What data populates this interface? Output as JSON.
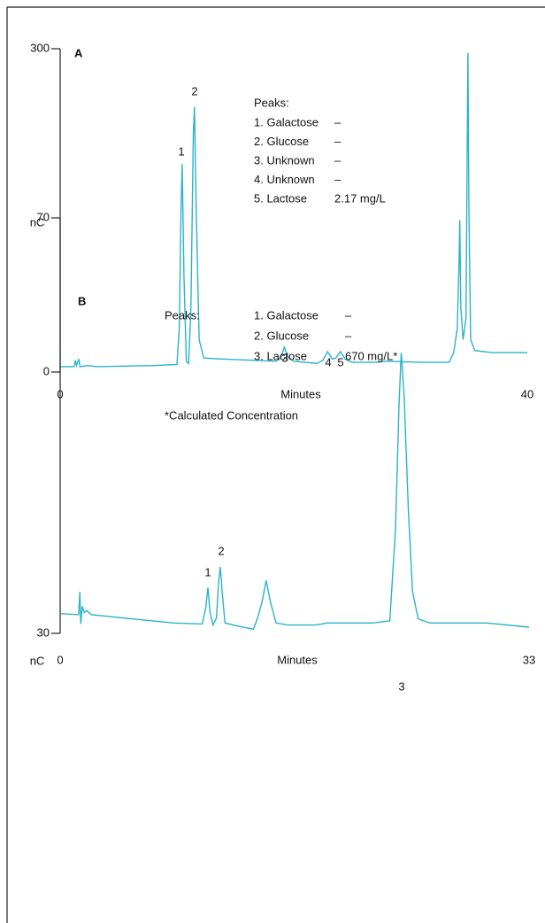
{
  "chart_data": [
    {
      "type": "line",
      "panel": "A",
      "ylabel": "nC",
      "xlabel": "Minutes",
      "color": "#2bb3c8",
      "xlim": [
        0,
        40
      ],
      "ylim": [
        0,
        300
      ],
      "xticks": [
        0,
        40
      ],
      "yticks": [
        0,
        300
      ],
      "x": [
        0,
        1.2,
        1.3,
        1.4,
        1.6,
        1.7,
        2.3,
        3.2,
        8,
        10.0,
        10.2,
        10.35,
        10.45,
        10.6,
        10.8,
        11.0,
        11.2,
        11.4,
        11.5,
        11.65,
        11.9,
        12.3,
        14,
        18.5,
        18.9,
        19.2,
        19.5,
        20,
        22,
        22.5,
        22.9,
        23.3,
        23.6,
        24.0,
        24.4,
        25,
        27,
        28,
        31,
        33.3,
        33.7,
        34.0,
        34.15,
        34.22,
        34.3,
        34.5,
        34.75,
        34.85,
        34.92,
        35.0,
        35.15,
        35.5,
        37,
        40
      ],
      "values": [
        5,
        5,
        11,
        6,
        12,
        5,
        6,
        5,
        6,
        7,
        40,
        150,
        193,
        90,
        10,
        8,
        60,
        220,
        246,
        150,
        30,
        13,
        12,
        10,
        14,
        23,
        14,
        10,
        8,
        11,
        19,
        12,
        13,
        19,
        12,
        9,
        9,
        10,
        9,
        9,
        18,
        40,
        100,
        141,
        60,
        30,
        50,
        200,
        296,
        150,
        30,
        20,
        18,
        18
      ],
      "peak_labels": [
        "1",
        "2",
        "3",
        "4",
        "5"
      ],
      "peaks_title": "Peaks:",
      "peak_table": [
        [
          "1.  Galactose",
          "–"
        ],
        [
          "2.  Glucose",
          "–"
        ],
        [
          "3.  Unknown",
          "–"
        ],
        [
          "4.  Unknown",
          "–"
        ],
        [
          "5.  Lactose",
          "2.17  mg/L"
        ]
      ]
    },
    {
      "type": "line",
      "panel": "B",
      "ylabel": "nC",
      "xlabel": "Minutes",
      "color": "#2bb3c8",
      "xlim": [
        0,
        33
      ],
      "ylim": [
        30,
        70
      ],
      "xticks": [
        0,
        33
      ],
      "yticks": [
        30,
        70
      ],
      "x": [
        0,
        1.3,
        1.38,
        1.45,
        1.55,
        1.7,
        1.85,
        2.2,
        5,
        8,
        10.0,
        10.25,
        10.4,
        10.55,
        10.75,
        11.0,
        11.15,
        11.27,
        11.4,
        11.6,
        12.5,
        13.6,
        13.9,
        14.2,
        14.5,
        14.8,
        15.2,
        16,
        18,
        18.8,
        22,
        23.2,
        23.6,
        23.85,
        24.0,
        24.2,
        24.5,
        24.8,
        25.2,
        26,
        30,
        33
      ],
      "values": [
        31.9,
        31.8,
        34.0,
        30.9,
        32.6,
        32.0,
        32.2,
        31.8,
        31.4,
        31.0,
        30.9,
        32.5,
        34.4,
        32.0,
        30.8,
        31.5,
        35.0,
        36.4,
        34.0,
        31.0,
        30.7,
        30.4,
        31.5,
        33.0,
        35.1,
        33.0,
        31.0,
        30.8,
        30.8,
        31.0,
        31.0,
        31.2,
        40,
        52,
        57.0,
        53,
        42,
        34,
        31.4,
        31.0,
        31.0,
        30.6
      ],
      "peak_labels": [
        "1",
        "2",
        "3"
      ],
      "peaks_title": "Peaks:",
      "peak_table": [
        [
          "1. Galactose",
          "–"
        ],
        [
          "2. Glucose",
          "–"
        ],
        [
          "3. Lactose",
          "670 mg/L*"
        ]
      ],
      "note": "*Calculated Concentration"
    }
  ]
}
